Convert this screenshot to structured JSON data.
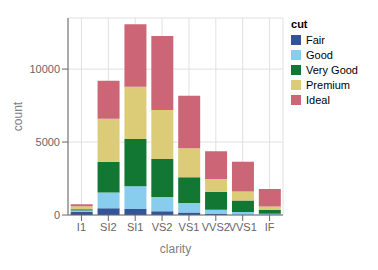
{
  "chart_data": {
    "type": "bar",
    "stacked": true,
    "categories": [
      "I1",
      "SI2",
      "SI1",
      "VS2",
      "VS1",
      "VVS2",
      "VVS1",
      "IF"
    ],
    "series": [
      {
        "name": "Fair",
        "color": "#335598",
        "values": [
          210,
          466,
          408,
          261,
          170,
          69,
          17,
          9
        ]
      },
      {
        "name": "Good",
        "color": "#88CCEE",
        "values": [
          96,
          1081,
          1560,
          978,
          648,
          286,
          186,
          71
        ]
      },
      {
        "name": "Very Good",
        "color": "#117733",
        "values": [
          84,
          2100,
          3240,
          2591,
          1775,
          1235,
          789,
          268
        ]
      },
      {
        "name": "Premium",
        "color": "#DDCC77",
        "values": [
          205,
          2949,
          3575,
          3357,
          1989,
          870,
          616,
          230
        ]
      },
      {
        "name": "Ideal",
        "color": "#CC6677",
        "values": [
          146,
          2598,
          4282,
          5071,
          3589,
          1911,
          2047,
          1212
        ]
      }
    ],
    "xlabel": "clarity",
    "ylabel": "count",
    "legend_title": "cut",
    "ylim": [
      0,
      13500
    ],
    "yticks": [
      0,
      5000,
      10000
    ],
    "grid": true,
    "legend": "right"
  }
}
